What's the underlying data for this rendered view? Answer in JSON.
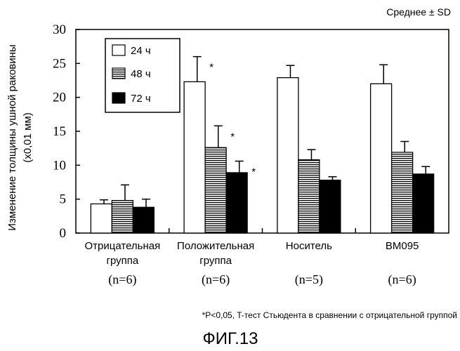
{
  "chart_data": {
    "type": "bar",
    "stat_label": "Среднее ± SD",
    "ylabel_line1": "Изменение толщины ушной раковины",
    "ylabel_line2": "(x0,01 мм)",
    "ylim": [
      0,
      30
    ],
    "yticks": [
      "0",
      "5",
      "10",
      "15",
      "20",
      "25",
      "30"
    ],
    "categories": [
      {
        "line1": "Отрицательная",
        "line2": "группа",
        "n": "(n=6)"
      },
      {
        "line1": "Положительная",
        "line2": "группа",
        "n": "(n=6)"
      },
      {
        "line1": "Носитель",
        "line2": "",
        "n": "(n=5)"
      },
      {
        "line1": "BM095",
        "line2": "",
        "n": "(n=6)"
      }
    ],
    "series": [
      {
        "name": "24 ч",
        "fill": "white",
        "values": [
          4.3,
          22.3,
          22.9,
          22.0
        ],
        "sd": [
          0.6,
          3.7,
          1.8,
          2.8
        ],
        "significant": [
          false,
          true,
          false,
          false
        ]
      },
      {
        "name": "48 ч",
        "fill": "hatch",
        "values": [
          4.8,
          12.6,
          10.8,
          11.9
        ],
        "sd": [
          2.3,
          3.2,
          1.5,
          1.6
        ],
        "significant": [
          false,
          true,
          false,
          false
        ]
      },
      {
        "name": "72 ч",
        "fill": "black",
        "values": [
          3.8,
          8.9,
          7.8,
          8.7
        ],
        "sd": [
          1.2,
          1.7,
          0.5,
          1.1
        ],
        "significant": [
          false,
          true,
          false,
          false
        ]
      }
    ],
    "significance_mark": "*",
    "footnote": "*P<0,05, T-тест Стьюдента в сравнении с отрицательной группой",
    "figure_label": "ФИГ.13"
  }
}
